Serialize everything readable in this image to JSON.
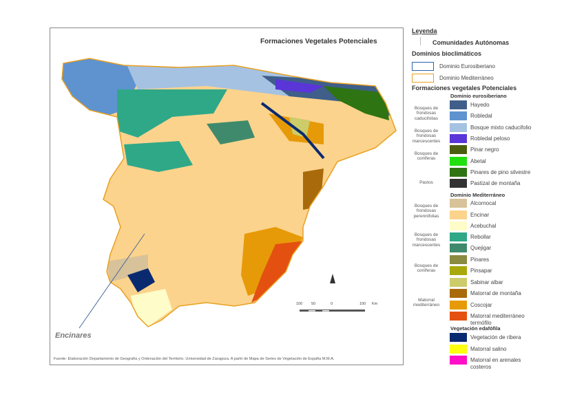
{
  "map": {
    "title": "Formaciones Vegetales Potenciales",
    "annotation": "Encinares",
    "source": "Fuente: Elaboración Departamento de Geografía y Ordenación del Territorio. Universidad de Zaragoza. A partir de Mapa de Series de Vegetación de España M.M.A.",
    "scale": {
      "ticks": [
        "100",
        "50",
        "0",
        "100"
      ],
      "unit": "Km"
    }
  },
  "legend": {
    "title": "Leyenda",
    "communities": "Comunidades Autónomas",
    "domains_title": "Dominios bioclimáticos",
    "domains": [
      {
        "label": "Dominio Eurosiberiano",
        "color": "#2a5fb0"
      },
      {
        "label": "Dominio Mediterráneo",
        "color": "#e8a020"
      }
    ],
    "formations_title": "Formaciones vegetales Potenciales",
    "euro_title": "Dominio eurosiberiano",
    "med_title": "Dominio Mediterráneo",
    "edaf_title": "Vegetación edafófila",
    "euro_items": [
      {
        "label": "Hayedo",
        "color": "#3f5f8a"
      },
      {
        "label": "Robledal",
        "color": "#5e93cf"
      },
      {
        "label": "Bosque mixto caducifolio",
        "color": "#a6c2e2"
      },
      {
        "label": "Robledal peloso",
        "color": "#5a35d8"
      },
      {
        "label": "Pinar negro",
        "color": "#4b5e10"
      },
      {
        "label": "Abetal",
        "color": "#22e010"
      },
      {
        "label": "Pinares de pino silvestre",
        "color": "#2e7412"
      },
      {
        "label": "Pastizal de montaña",
        "color": "#333333"
      }
    ],
    "med_items": [
      {
        "label": "Alcornocal",
        "color": "#d8c29a"
      },
      {
        "label": "Encinar",
        "color": "#fcd38c"
      },
      {
        "label": "Acebuchal",
        "color": "#fefcc8"
      },
      {
        "label": "Rebollar",
        "color": "#2fa888"
      },
      {
        "label": "Quejigar",
        "color": "#3f8a6c"
      },
      {
        "label": "Pinares",
        "color": "#8a8a40"
      },
      {
        "label": "Pinsapar",
        "color": "#a8a80a"
      },
      {
        "label": "Sabinar albar",
        "color": "#cccc6a"
      },
      {
        "label": "Matorral de montaña",
        "color": "#a86a0a"
      },
      {
        "label": "Coscojar",
        "color": "#e69a08"
      },
      {
        "label": "Matorral mediterráneo termófilo",
        "color": "#e45010"
      }
    ],
    "edaf_items": [
      {
        "label": "Vegetación de ribera",
        "color": "#0a2a70"
      },
      {
        "label": "Matorral salino",
        "color": "#ffff10"
      },
      {
        "label": "Matorral en arenales costeros",
        "color": "#ff10c8"
      }
    ],
    "groups": [
      "Bosques de frondosas caducifolias",
      "Bosques de frondosas marcescentes",
      "Bosques de coníferas",
      "Pastos",
      "Bosques de frondosas perennifolias",
      "Bosques de frondosas marcescentes",
      "Bosques de coníferas",
      "Matorral mediterráneo"
    ]
  }
}
